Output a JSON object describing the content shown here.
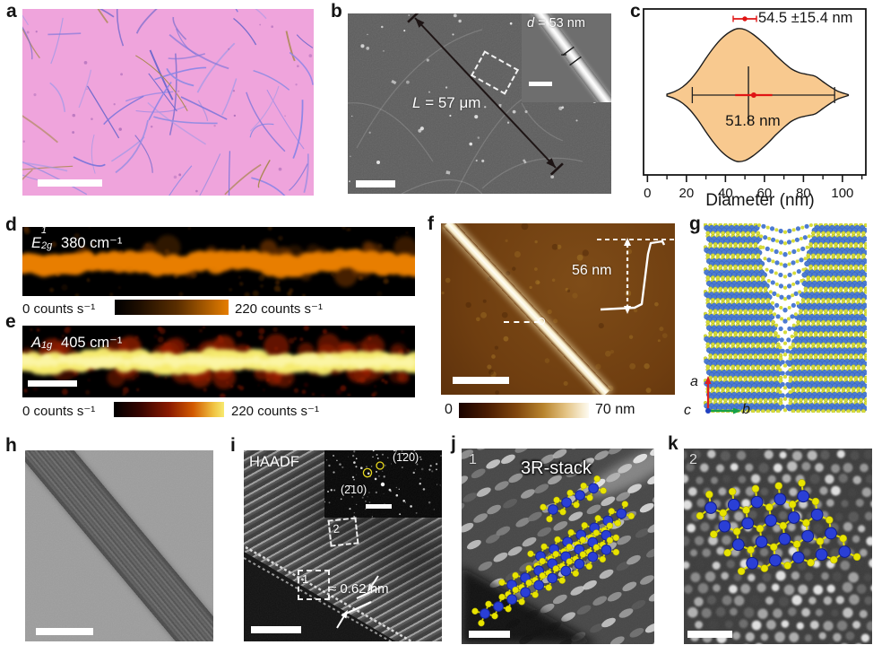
{
  "colors": {
    "violin_fill": "#f8c98f",
    "violin_outline": "#1c1c1c",
    "mean_marker": "#e01414",
    "raman_d_band": "#e87e06",
    "raman_e_band": "#f4ea6e",
    "afm_background": "#6f3e10",
    "atom_blue": "#2a3fd6",
    "atom_yellow": "#e8e400",
    "model_blue": "#4d7bd2",
    "model_yellow": "#d6dc3a",
    "optical_background": "#efa4dc",
    "sem_background": "#5d5d5d",
    "axis_a_red": "#e02020",
    "axis_b_green": "#18a048",
    "axis_c_blue": "#2040c0"
  },
  "figure": {
    "panels": {
      "a": {
        "label": "a"
      },
      "b": {
        "label": "b",
        "length_var": "L",
        "length_value": " = 57 μm",
        "inset_var": "d",
        "inset_value": " = 53 nm"
      },
      "c": {
        "label": "c"
      },
      "d": {
        "label": "d",
        "mode_symbol": "E",
        "mode_sup": "1",
        "mode_sub": "2g",
        "wavenumber": "380 cm⁻¹",
        "cbar_min": "0 counts s⁻¹",
        "cbar_max": "220 counts s⁻¹"
      },
      "e": {
        "label": "e",
        "mode_symbol": "A",
        "mode_sub": "1g",
        "wavenumber": "405 cm⁻¹",
        "cbar_min": "0 counts s⁻¹",
        "cbar_max": "220 counts s⁻¹"
      },
      "f": {
        "label": "f",
        "height_value": "56 nm",
        "cbar_min": "0",
        "cbar_max": "70 nm"
      },
      "g": {
        "label": "g",
        "axis_a": "a",
        "axis_b": "b",
        "axis_c": "c"
      },
      "h": {
        "label": "h"
      },
      "i": {
        "label": "i",
        "technique": "HAADF",
        "fft_spot_upper": "(1̄20)",
        "fft_spot_lower": "(2̄10)",
        "region_box_1": "1",
        "region_box_2": "2",
        "interlayer_spacing": "≈ 0.62 nm"
      },
      "j": {
        "label": "j",
        "region": "1",
        "stacking_label": "3R-stack"
      },
      "k": {
        "label": "k",
        "region": "2"
      }
    }
  },
  "chart_data": {
    "type": "violin",
    "orientation": "horizontal",
    "title": "",
    "xlabel": "Diameter (nm)",
    "ylabel": "",
    "xlim": [
      -2,
      112
    ],
    "xticks_major": [
      0,
      20,
      40,
      60,
      80,
      100
    ],
    "xticks_minor": [
      10,
      30,
      50,
      70,
      90,
      110
    ],
    "mean": 54.5,
    "sd": 15.4,
    "median": 51.8,
    "mean_label": "54.5 ±15.4 nm",
    "median_label": "51.8 nm",
    "whisker_range": [
      23,
      96
    ],
    "mean_bar_range": [
      45,
      64
    ],
    "density_x": [
      10,
      14,
      18,
      22,
      26,
      30,
      34,
      38,
      42,
      46,
      50,
      54,
      58,
      62,
      66,
      70,
      74,
      78,
      82,
      86,
      90,
      94,
      98,
      103
    ],
    "density_halfwidth": [
      1,
      4,
      9,
      17,
      28,
      41,
      53,
      63,
      70,
      74,
      73,
      68,
      61,
      53,
      44,
      36,
      29,
      25,
      23,
      21,
      15,
      9,
      4,
      0.5
    ],
    "grid": false,
    "legend_position": "top-right"
  }
}
